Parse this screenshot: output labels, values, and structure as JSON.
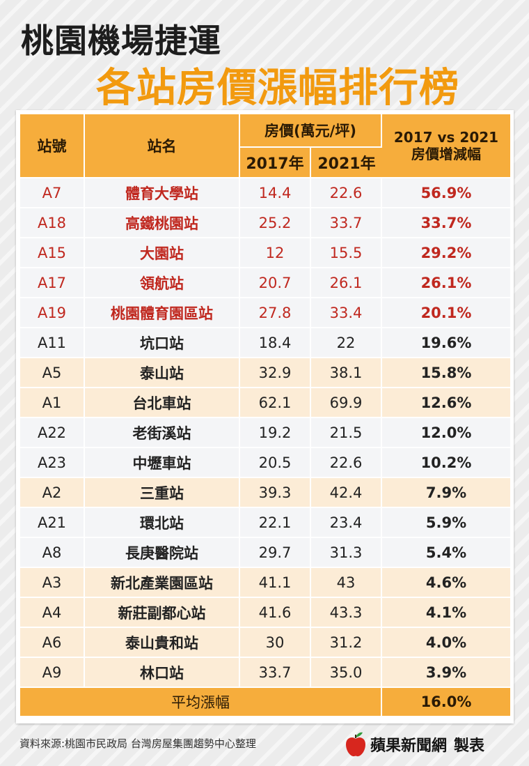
{
  "title": {
    "line1": "桃園機場捷運",
    "line2": "各站房價漲幅排行榜"
  },
  "table": {
    "headers": {
      "code": "站號",
      "name": "站名",
      "price_group": "房價(萬元/坪)",
      "year1": "2017年",
      "year2": "2021年",
      "change_line1": "2017 vs 2021",
      "change_line2": "房價增減幅"
    },
    "rows": [
      {
        "code": "A7",
        "name": "體育大學站",
        "p2017": "14.4",
        "p2021": "22.6",
        "change": "56.9%"
      },
      {
        "code": "A18",
        "name": "高鐵桃園站",
        "p2017": "25.2",
        "p2021": "33.7",
        "change": "33.7%"
      },
      {
        "code": "A15",
        "name": "大園站",
        "p2017": "12",
        "p2021": "15.5",
        "change": "29.2%"
      },
      {
        "code": "A17",
        "name": "領航站",
        "p2017": "20.7",
        "p2021": "26.1",
        "change": "26.1%"
      },
      {
        "code": "A19",
        "name": "桃園體育園區站",
        "p2017": "27.8",
        "p2021": "33.4",
        "change": "20.1%"
      },
      {
        "code": "A11",
        "name": "坑口站",
        "p2017": "18.4",
        "p2021": "22",
        "change": "19.6%"
      },
      {
        "code": "A5",
        "name": "泰山站",
        "p2017": "32.9",
        "p2021": "38.1",
        "change": "15.8%"
      },
      {
        "code": "A1",
        "name": "台北車站",
        "p2017": "62.1",
        "p2021": "69.9",
        "change": "12.6%"
      },
      {
        "code": "A22",
        "name": "老街溪站",
        "p2017": "19.2",
        "p2021": "21.5",
        "change": "12.0%"
      },
      {
        "code": "A23",
        "name": "中壢車站",
        "p2017": "20.5",
        "p2021": "22.6",
        "change": "10.2%"
      },
      {
        "code": "A2",
        "name": "三重站",
        "p2017": "39.3",
        "p2021": "42.4",
        "change": "7.9%"
      },
      {
        "code": "A21",
        "name": "環北站",
        "p2017": "22.1",
        "p2021": "23.4",
        "change": "5.9%"
      },
      {
        "code": "A8",
        "name": "長庚醫院站",
        "p2017": "29.7",
        "p2021": "31.3",
        "change": "5.4%"
      },
      {
        "code": "A3",
        "name": "新北產業園區站",
        "p2017": "41.1",
        "p2021": "43",
        "change": "4.6%"
      },
      {
        "code": "A4",
        "name": "新莊副都心站",
        "p2017": "41.6",
        "p2021": "43.3",
        "change": "4.1%"
      },
      {
        "code": "A6",
        "name": "泰山貴和站",
        "p2017": "30",
        "p2021": "31.2",
        "change": "4.0%"
      },
      {
        "code": "A9",
        "name": "林口站",
        "p2017": "33.7",
        "p2021": "35.0",
        "change": "3.9%"
      }
    ],
    "footer": {
      "label": "平均漲幅",
      "value": "16.0%"
    }
  },
  "source": "資料來源:桃園市民政局  台灣房屋集團趨勢中心整理",
  "brand": {
    "name": "蘋果新聞網",
    "suffix": "製表",
    "icon": "apple-logo-icon"
  },
  "colors": {
    "accent": "#f29a0f",
    "header": "#f6ad3c",
    "highlight_text": "#c0281f",
    "row_tan": "#fcecd6",
    "row_white": "#f4f5f7"
  }
}
